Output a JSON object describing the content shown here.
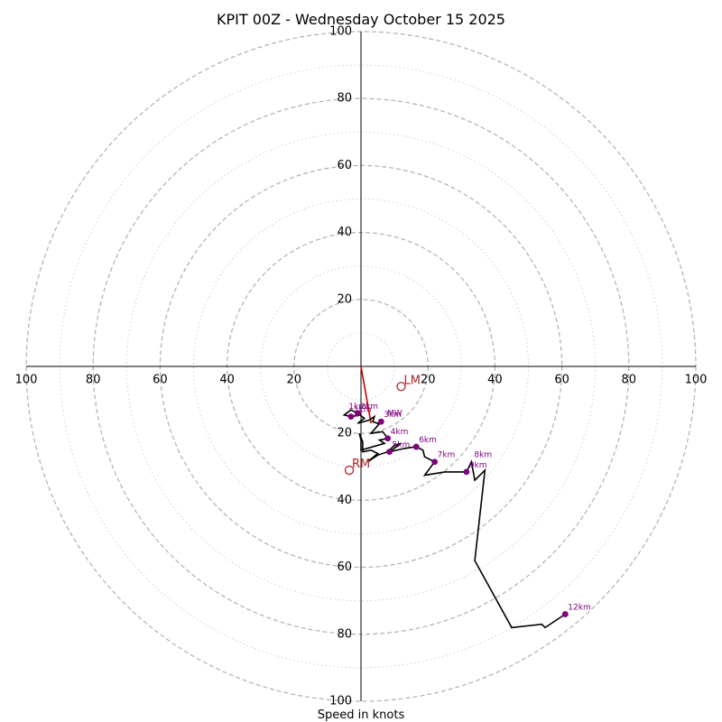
{
  "chart_data": {
    "type": "hodograph",
    "title": "KPIT 00Z - Wednesday October 15 2025",
    "xlabel": "Speed in knots",
    "rmax": 100,
    "ring_major": [
      20,
      40,
      60,
      80,
      100
    ],
    "ring_minor": [
      10,
      30,
      50,
      70,
      90
    ],
    "tick_labels": [
      "20",
      "40",
      "60",
      "80",
      "100"
    ],
    "colors": {
      "trace": "#000000",
      "marker": "#800080",
      "mean_vector": "#cc0000",
      "storm_marker": "#b22222",
      "ring": "#b0b0b0",
      "axis": "#000000"
    },
    "trace": [
      [
        0.0,
        -14.5
      ],
      [
        -3.0,
        -15.0
      ],
      [
        -5.0,
        -14.5
      ],
      [
        -3.0,
        -13.0
      ],
      [
        -1.0,
        -14.0
      ],
      [
        1.0,
        -15.5
      ],
      [
        -1.0,
        -17.0
      ],
      [
        2.5,
        -16.0
      ],
      [
        4.0,
        -15.0
      ],
      [
        3.5,
        -16.5
      ],
      [
        5.0,
        -17.0
      ],
      [
        6.0,
        -16.5
      ],
      [
        3.0,
        -20.0
      ],
      [
        6.5,
        -19.5
      ],
      [
        8.0,
        -21.5
      ],
      [
        5.5,
        -22.0
      ],
      [
        7.0,
        -23.0
      ],
      [
        0.0,
        -25.0
      ],
      [
        0.0,
        -22.0
      ],
      [
        -0.5,
        -20.0
      ],
      [
        0.5,
        -22.5
      ],
      [
        0.5,
        -25.5
      ],
      [
        3.0,
        -25.0
      ],
      [
        5.0,
        -26.0
      ],
      [
        2.0,
        -28.5
      ],
      [
        5.0,
        -26.5
      ],
      [
        8.0,
        -25.5
      ],
      [
        10.0,
        -23.5
      ],
      [
        12.0,
        -23.0
      ],
      [
        8.5,
        -25.5
      ],
      [
        13.0,
        -24.5
      ],
      [
        16.5,
        -24.0
      ],
      [
        18.5,
        -25.0
      ],
      [
        19.0,
        -27.0
      ],
      [
        22.0,
        -28.5
      ],
      [
        19.0,
        -32.5
      ],
      [
        25.0,
        -31.5
      ],
      [
        31.5,
        -31.5
      ],
      [
        33.0,
        -28.5
      ],
      [
        34.0,
        -34.0
      ],
      [
        37.0,
        -31.0
      ],
      [
        34.0,
        -58.0
      ],
      [
        45.0,
        -78.0
      ],
      [
        54.0,
        -77.0
      ],
      [
        55.0,
        -78.0
      ],
      [
        61.0,
        -74.0
      ]
    ],
    "height_markers": [
      {
        "label": "1km",
        "u": -3.0,
        "v": -15.0
      },
      {
        "label": "2km",
        "u": -1.0,
        "v": -14.0
      },
      {
        "label": "3km",
        "u": 6.0,
        "v": -16.5
      },
      {
        "label": "4km",
        "u": 8.0,
        "v": -21.5
      },
      {
        "label": "5km",
        "u": 8.5,
        "v": -25.5
      },
      {
        "label": "6km",
        "u": 16.5,
        "v": -24.0
      },
      {
        "label": "7km",
        "u": 22.0,
        "v": -28.5
      },
      {
        "label": "9km",
        "u": 31.5,
        "v": -31.5
      },
      {
        "label": "12km",
        "u": 61.0,
        "v": -74.0
      }
    ],
    "extra_marker_labels": [
      {
        "label": "1km",
        "u": -4.5,
        "v": -14.0
      },
      {
        "label": "8km",
        "u": 33.0,
        "v": -28.5
      },
      {
        "label": "MW",
        "u": 7.0,
        "v": -16.0
      }
    ],
    "mean_wind_vector": {
      "u": 3.0,
      "v": -17.0
    },
    "storm_motion": [
      {
        "label": "LM",
        "u": 12.0,
        "v": -6.0
      },
      {
        "label": "RM",
        "u": -3.5,
        "v": -31.0
      }
    ]
  }
}
